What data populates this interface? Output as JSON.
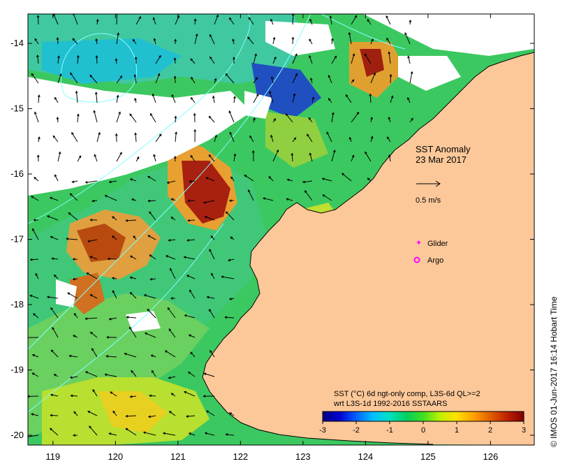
{
  "map": {
    "title_line1": "SST Anomaly",
    "title_line2": "23 Mar 2017",
    "lon_ticks": [
      "119",
      "120",
      "121",
      "122",
      "123",
      "124",
      "125",
      "126"
    ],
    "lat_ticks": [
      "-14",
      "-15",
      "-16",
      "-17",
      "-18",
      "-19",
      "-20"
    ],
    "lon_range": [
      118.6,
      126.7
    ],
    "lat_range": [
      -20.15,
      -13.55
    ],
    "velocity_scale_label": "0.5 m/s",
    "legend": {
      "glider_label": "Glider",
      "argo_label": "Argo",
      "marker_color": "#ff00ff"
    },
    "colorbar": {
      "caption_line1": "SST (°C) 6d ngt-only comp, L3S-6d QL>=2",
      "caption_line2": "wrt L3S-1d 1992-2016 SSTAARS",
      "tick_labels": [
        "-3",
        "-2",
        "-1",
        "0",
        "1",
        "2",
        "3"
      ],
      "range": [
        -3,
        3
      ],
      "colors": [
        "#00007f",
        "#0000d0",
        "#0060ff",
        "#00c0ff",
        "#00e0c0",
        "#00d060",
        "#40e020",
        "#c0f000",
        "#ffe000",
        "#ffa000",
        "#e06000",
        "#c02000",
        "#800000"
      ]
    },
    "credit": "© IMOS 01-Jun-2017 16:14 Hobart Time",
    "colors": {
      "land": "#fdc899",
      "no_data": "#ffffff",
      "contour": "#80ffff",
      "coast": "#000000"
    }
  }
}
